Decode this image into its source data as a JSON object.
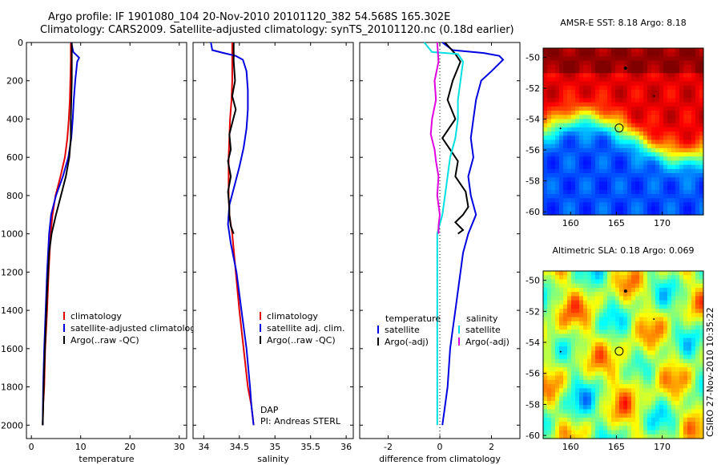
{
  "header": {
    "line1": "Argo profile: IF 1901080_104 20-Nov-2010 20101120_382 54.568S 165.302E",
    "line2": "Climatology: CARS2009. Satellite-adjusted climatology: synTS_20101120.nc (0.18d earlier)"
  },
  "chart_data": [
    {
      "type": "line",
      "id": "temperature",
      "xlabel": "temperature",
      "ylabel": "",
      "xlim": [
        -1,
        31.5
      ],
      "ylim": [
        2070,
        0
      ],
      "xticks": [
        0,
        10,
        20,
        30
      ],
      "yticks": [
        0,
        200,
        400,
        600,
        800,
        1000,
        1200,
        1400,
        1600,
        1800,
        2000
      ],
      "legend": [
        "climatology",
        "satellite-adjusted climatology",
        "Argo(..raw -QC)"
      ],
      "series": [
        {
          "name": "climatology",
          "color": "#e00000",
          "x": [
            8.0,
            8.0,
            7.9,
            7.8,
            7.6,
            7.3,
            6.8,
            5.9,
            4.9,
            4.3,
            3.9,
            3.5,
            3.2,
            3.0,
            2.8,
            2.6,
            2.4,
            2.3
          ],
          "y": [
            0,
            100,
            200,
            300,
            400,
            500,
            600,
            700,
            800,
            900,
            1000,
            1200,
            1400,
            1500,
            1600,
            1800,
            1900,
            2000
          ]
        },
        {
          "name": "satellite-adjusted climatology",
          "color": "#0000e0",
          "x": [
            8.1,
            8.5,
            9.7,
            9.3,
            8.9,
            8.6,
            8.4,
            8.1,
            7.5,
            6.4,
            5.0,
            4.0,
            3.6,
            3.2,
            2.9,
            2.6,
            2.4,
            2.3
          ],
          "y": [
            0,
            50,
            80,
            100,
            200,
            300,
            400,
            500,
            600,
            700,
            800,
            900,
            1000,
            1200,
            1400,
            1600,
            1800,
            2000
          ]
        },
        {
          "name": "Argo(..raw -QC)",
          "color": "#000000",
          "x": [
            8.2,
            8.2,
            8.2,
            8.1,
            8.0,
            8.0,
            7.7,
            7.0,
            6.0,
            5.0,
            4.1,
            3.6,
            3.2,
            2.9,
            2.6,
            2.4,
            2.3
          ],
          "y": [
            0,
            100,
            200,
            300,
            400,
            500,
            600,
            700,
            800,
            900,
            1000,
            1100,
            1300,
            1500,
            1700,
            1900,
            2000
          ]
        }
      ]
    },
    {
      "type": "line",
      "id": "salinity",
      "xlabel": "salinity",
      "ylabel": "",
      "xlim": [
        33.85,
        36.1
      ],
      "ylim": [
        2070,
        0
      ],
      "xticks": [
        34,
        34.5,
        35,
        35.5,
        36
      ],
      "xticklabels": [
        "34",
        "34.5",
        "35",
        "35.5",
        "36"
      ],
      "legend": [
        "climatology",
        "satellite adj. clim.",
        "Argo(..raw -QC)"
      ],
      "annotations": [
        "DAP",
        "PI: Andreas STERL"
      ],
      "series": [
        {
          "name": "climatology",
          "color": "#e00000",
          "x": [
            34.4,
            34.4,
            34.4,
            34.39,
            34.37,
            34.36,
            34.35,
            34.35,
            34.35,
            34.36,
            34.4,
            34.45,
            34.5,
            34.56,
            34.62,
            34.67,
            34.7
          ],
          "y": [
            0,
            100,
            200,
            300,
            400,
            500,
            600,
            700,
            800,
            900,
            1000,
            1200,
            1400,
            1600,
            1800,
            1900,
            2000
          ]
        },
        {
          "name": "satellite adj. clim.",
          "color": "#0000e0",
          "x": [
            34.1,
            34.12,
            34.28,
            34.45,
            34.55,
            34.6,
            34.62,
            34.62,
            34.6,
            34.56,
            34.5,
            34.43,
            34.36,
            34.34,
            34.38,
            34.46,
            34.53,
            34.6,
            34.65,
            34.67,
            34.7
          ],
          "y": [
            0,
            40,
            55,
            70,
            90,
            150,
            250,
            350,
            450,
            550,
            650,
            750,
            850,
            950,
            1050,
            1200,
            1400,
            1600,
            1800,
            1900,
            2000
          ]
        },
        {
          "name": "Argo(..raw -QC)",
          "color": "#000000",
          "x": [
            34.42,
            34.42,
            34.44,
            34.4,
            34.45,
            34.4,
            34.36,
            34.38,
            34.34,
            34.38,
            34.34,
            34.36,
            34.36,
            34.38,
            34.42
          ],
          "y": [
            0,
            100,
            200,
            280,
            350,
            420,
            480,
            560,
            620,
            700,
            780,
            860,
            900,
            960,
            1000
          ]
        }
      ]
    },
    {
      "type": "line",
      "id": "difference",
      "xlabel": "difference from climatology",
      "ylabel": "",
      "xlim": [
        -3.1,
        3.1
      ],
      "ylim": [
        2070,
        0
      ],
      "xticks": [
        -2,
        0,
        2
      ],
      "legend": [
        "temperature",
        "satellite",
        "Argo(-adj)",
        "salinity",
        "satellite",
        "Argo(-adj)"
      ],
      "series": [
        {
          "name": "temperature satellite",
          "color": "#0000e0",
          "x": [
            0.1,
            0.5,
            1.7,
            2.3,
            2.45,
            2.0,
            1.6,
            1.4,
            1.3,
            1.2,
            1.3,
            1.1,
            1.2,
            1.4,
            1.1,
            0.9,
            0.8,
            0.6,
            0.5,
            0.4,
            0.3,
            0.2,
            0.1
          ],
          "y": [
            0,
            40,
            55,
            70,
            90,
            150,
            200,
            300,
            400,
            500,
            600,
            700,
            800,
            900,
            1000,
            1100,
            1200,
            1400,
            1500,
            1600,
            1800,
            1900,
            2000
          ]
        },
        {
          "name": "temperature Argo(-adj)",
          "color": "#000000",
          "x": [
            0.2,
            0.6,
            0.8,
            0.5,
            0.3,
            0.6,
            0.1,
            0.4,
            0.7,
            0.6,
            1.0,
            1.1,
            0.9,
            0.6,
            0.9,
            0.7
          ],
          "y": [
            0,
            60,
            100,
            200,
            300,
            400,
            500,
            560,
            620,
            700,
            780,
            860,
            900,
            940,
            980,
            1000
          ]
        },
        {
          "name": "salinity satellite",
          "color": "#00e0e0",
          "x": [
            -0.6,
            -0.3,
            0.7,
            0.9,
            0.8,
            0.7,
            0.7,
            0.6,
            0.4,
            0.3,
            0.2,
            0.1,
            -0.1,
            -0.1,
            -0.1,
            -0.1
          ],
          "y": [
            0,
            50,
            60,
            100,
            200,
            300,
            400,
            500,
            600,
            700,
            800,
            900,
            1000,
            1200,
            1600,
            2000
          ]
        },
        {
          "name": "salinity Argo(-adj)",
          "color": "#e000e0",
          "x": [
            -0.1,
            -0.05,
            -0.2,
            -0.15,
            -0.3,
            -0.35,
            -0.2,
            -0.15,
            -0.05,
            -0.1,
            0.0,
            -0.05,
            -0.05
          ],
          "y": [
            0,
            100,
            200,
            300,
            400,
            480,
            560,
            620,
            700,
            800,
            900,
            960,
            1000
          ]
        }
      ]
    },
    {
      "type": "heatmap",
      "id": "sst_map",
      "title": "AMSR-E SST: 8.18 Argo: 8.18",
      "xlim": [
        157,
        174.5
      ],
      "ylim": [
        -60.2,
        -49.4
      ],
      "xticks": [
        160,
        165,
        170
      ],
      "yticks": [
        -50,
        -52,
        -54,
        -56,
        -58,
        -60
      ],
      "argo_lon": 165.3,
      "argo_lat": -54.57
    },
    {
      "type": "heatmap",
      "id": "sla_map",
      "title": "Altimetric SLA: 0.18 Argo: 0.069",
      "xlim": [
        157,
        174.5
      ],
      "ylim": [
        -60.2,
        -49.4
      ],
      "xticks": [
        160,
        165,
        170
      ],
      "yticks": [
        -50,
        -52,
        -54,
        -56,
        -58,
        -60
      ],
      "argo_lon": 165.3,
      "argo_lat": -54.57
    }
  ],
  "footer": {
    "stamp": "CSIRO 27-Nov-2010 10:35:22"
  }
}
